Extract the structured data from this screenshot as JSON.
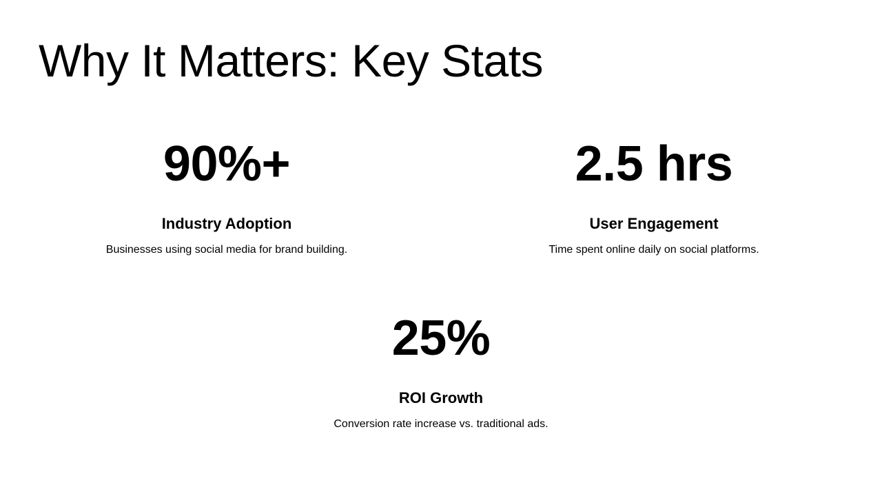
{
  "slide": {
    "title": "Why It Matters: Key Stats",
    "stats": [
      {
        "value": "90%+",
        "label": "Industry Adoption",
        "description": "Businesses using social media for brand building."
      },
      {
        "value": "2.5 hrs",
        "label": "User Engagement",
        "description": "Time spent online daily on social platforms."
      },
      {
        "value": "25%",
        "label": "ROI Growth",
        "description": "Conversion rate increase vs. traditional ads."
      }
    ]
  },
  "colors": {
    "background": "#ffffff",
    "text": "#000000"
  }
}
